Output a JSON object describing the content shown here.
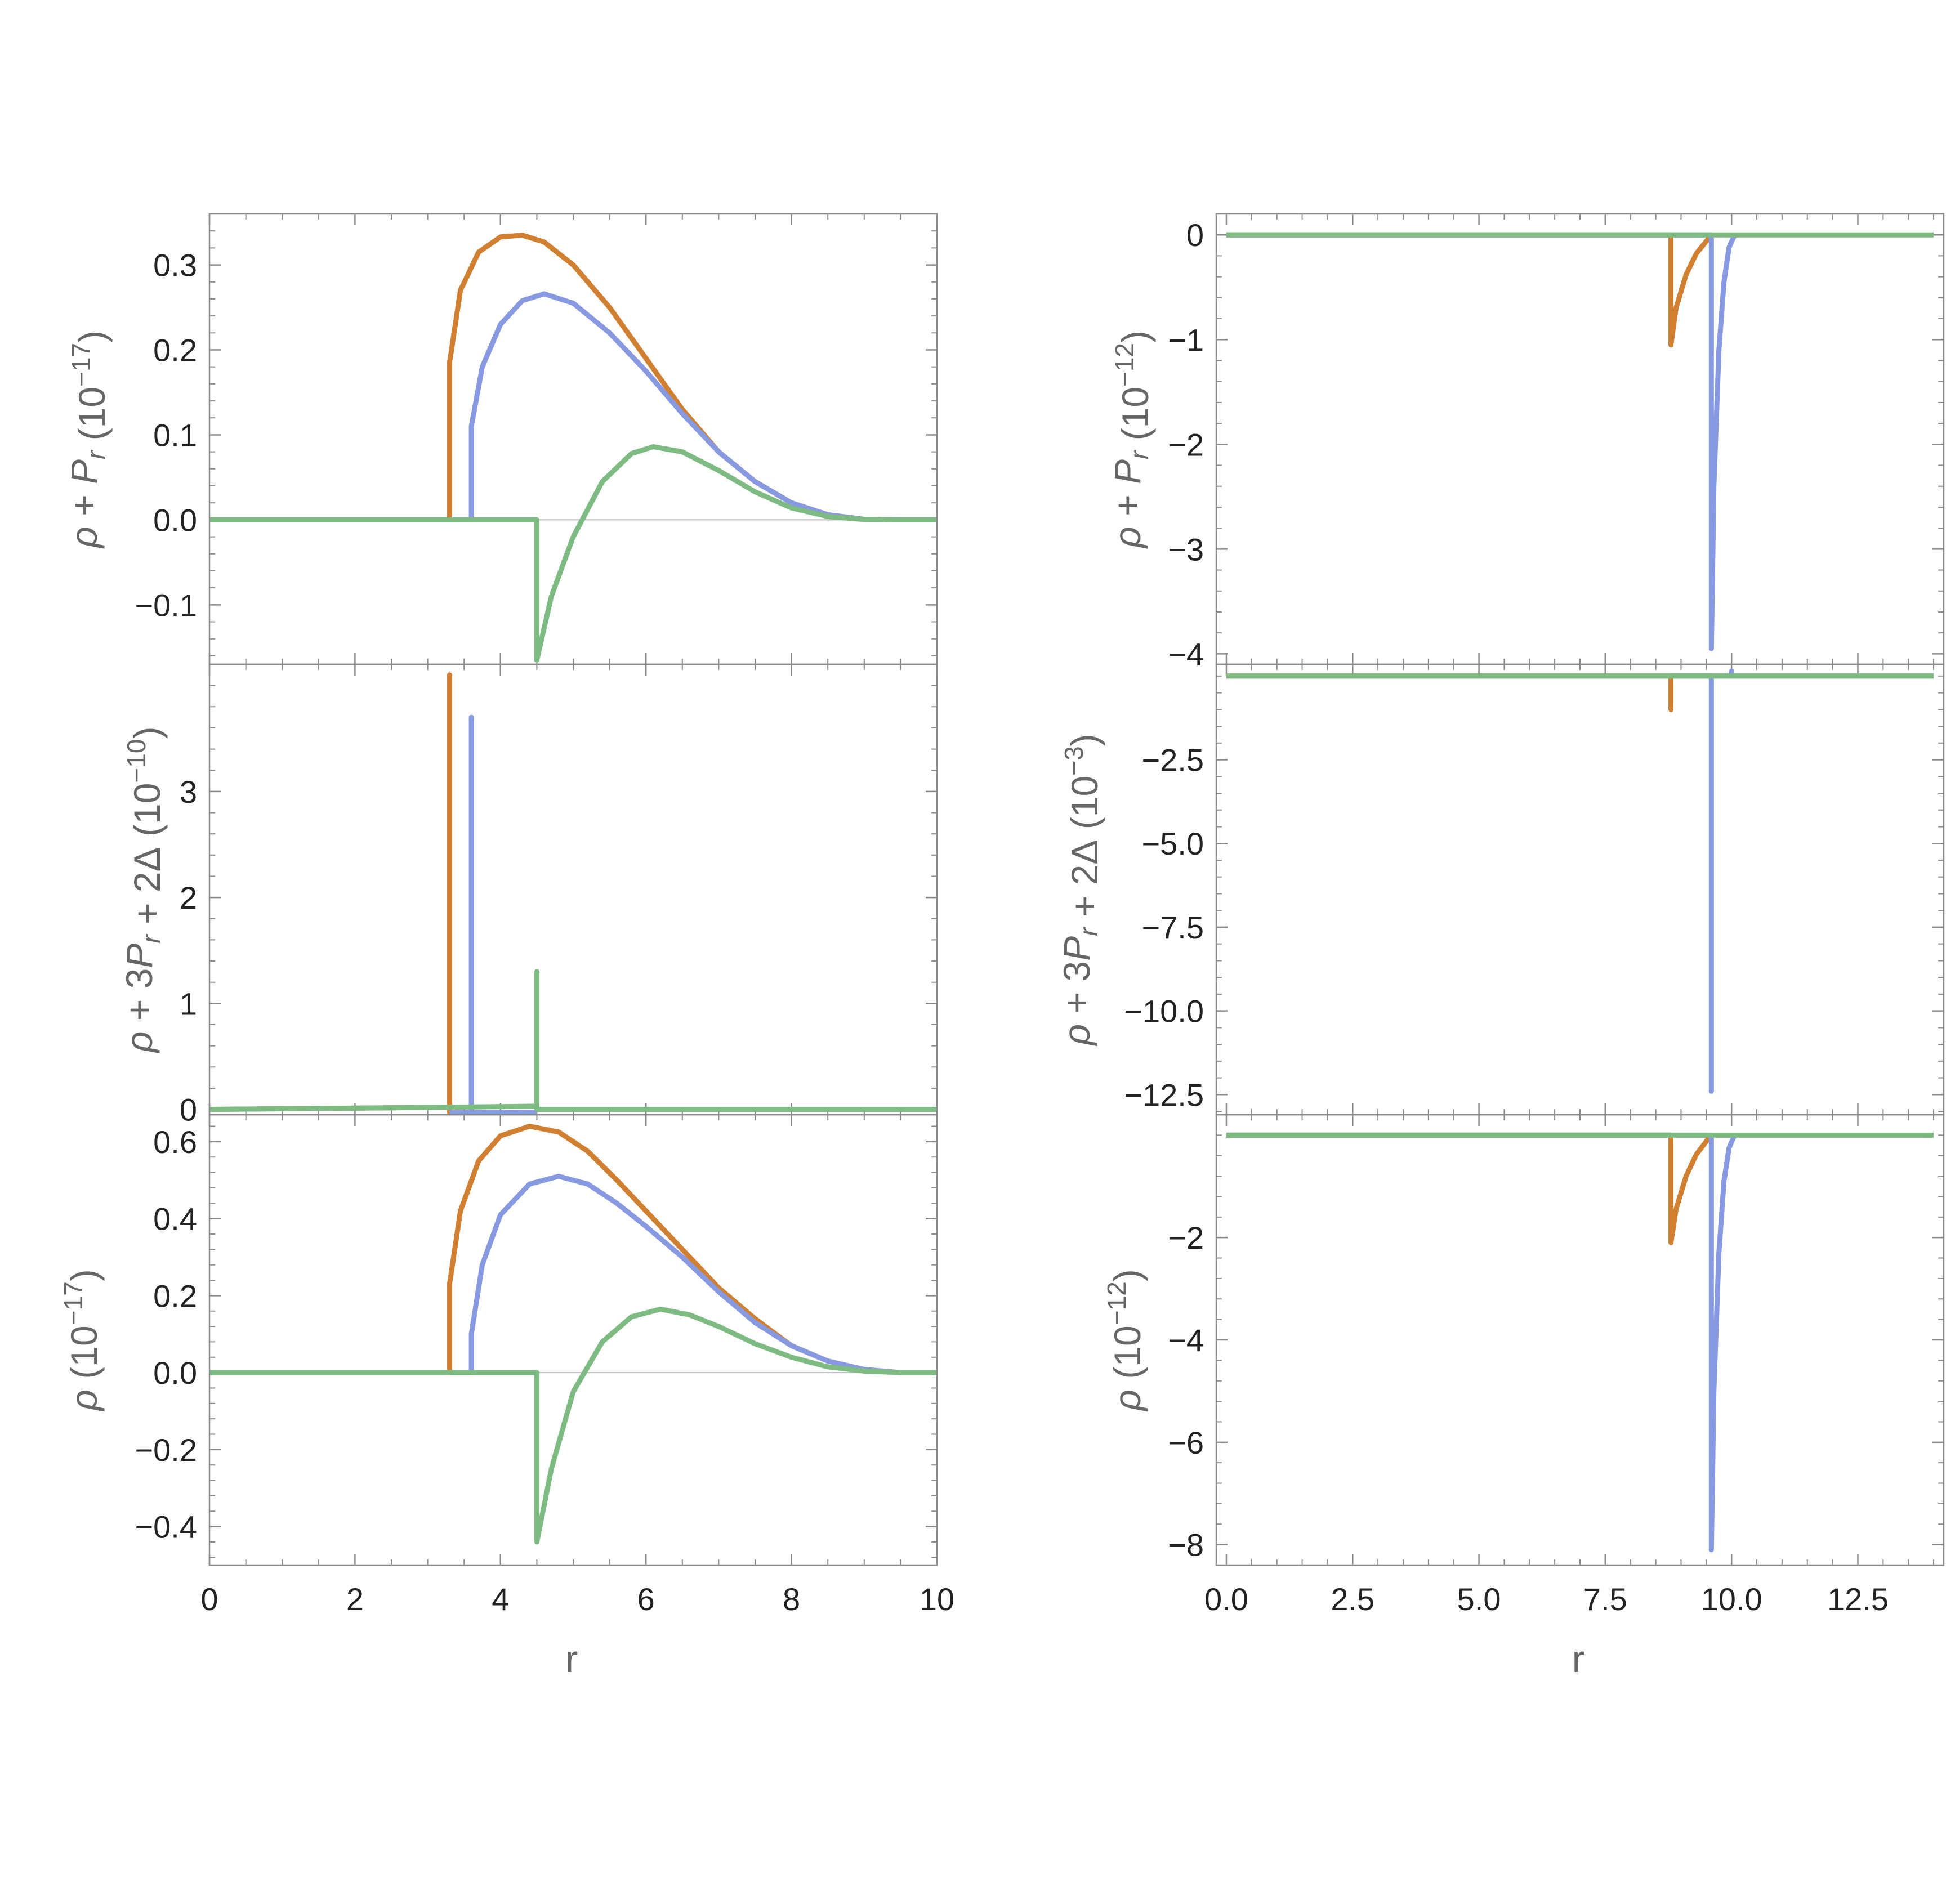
{
  "colors": {
    "orange": "#d17f30",
    "blue": "#8799e0",
    "green": "#7dbb82"
  },
  "left_xlabel": "r",
  "right_xlabel": "r",
  "chart_data": [
    {
      "type": "line",
      "id": "L1",
      "ylabel": "ρ + P_r (10^-17)",
      "xlim": [
        0,
        10
      ],
      "ylim": [
        -0.17,
        0.36
      ],
      "yticks": [
        "-0.1",
        "0.0",
        "0.1",
        "0.2",
        "0.3"
      ],
      "ytick_values": [
        -0.1,
        0.0,
        0.1,
        0.2,
        0.3
      ],
      "zero_line": true,
      "series": [
        {
          "color": "orange",
          "x": [
            0,
            3.3,
            3.3,
            3.45,
            3.7,
            4.0,
            4.3,
            4.6,
            5.0,
            5.5,
            6.0,
            6.5,
            7.0,
            7.5,
            8.0,
            8.5,
            9.0,
            9.5,
            10
          ],
          "y": [
            0,
            0,
            0.185,
            0.27,
            0.315,
            0.333,
            0.335,
            0.327,
            0.3,
            0.25,
            0.19,
            0.13,
            0.08,
            0.045,
            0.02,
            0.006,
            0.0005,
            0,
            0
          ]
        },
        {
          "color": "blue",
          "x": [
            0,
            3.6,
            3.6,
            3.75,
            4.0,
            4.3,
            4.6,
            5.0,
            5.5,
            6.0,
            6.5,
            7.0,
            7.5,
            8.0,
            8.5,
            9.0,
            9.5,
            10
          ],
          "y": [
            0,
            0,
            0.11,
            0.18,
            0.23,
            0.258,
            0.266,
            0.255,
            0.22,
            0.175,
            0.125,
            0.08,
            0.045,
            0.02,
            0.006,
            0.0005,
            0,
            0
          ]
        },
        {
          "color": "green",
          "x": [
            0,
            4.5,
            4.5,
            4.7,
            5.0,
            5.4,
            5.8,
            6.1,
            6.5,
            7.0,
            7.5,
            8.0,
            8.5,
            9.0,
            9.5,
            10
          ],
          "y": [
            0,
            0,
            -0.165,
            -0.09,
            -0.02,
            0.045,
            0.078,
            0.086,
            0.08,
            0.058,
            0.033,
            0.014,
            0.004,
            0.0004,
            0,
            0
          ]
        }
      ]
    },
    {
      "type": "line",
      "id": "L2",
      "ylabel": "ρ + 3P_r + 2Δ (10^-10)",
      "xlim": [
        0,
        10
      ],
      "ylim": [
        -0.05,
        4.2
      ],
      "yticks": [
        "0",
        "1",
        "2",
        "3"
      ],
      "ytick_values": [
        0,
        1,
        2,
        3
      ],
      "zero_line": false,
      "series": [
        {
          "color": "orange",
          "x": [
            0,
            3.3,
            3.3,
            3.3,
            3.6
          ],
          "y": [
            0,
            0.02,
            4.1,
            -0.03,
            -0.03
          ]
        },
        {
          "color": "blue",
          "x": [
            3.3,
            3.6,
            3.6,
            3.6,
            4.5
          ],
          "y": [
            -0.03,
            -0.03,
            3.7,
            -0.03,
            -0.03
          ]
        },
        {
          "color": "green",
          "x": [
            0,
            3.3,
            4.5,
            4.5,
            4.5,
            10
          ],
          "y": [
            0,
            0.02,
            0.03,
            1.3,
            0,
            0
          ]
        }
      ]
    },
    {
      "type": "line",
      "id": "L3",
      "ylabel": "ρ (10^-17)",
      "xlim": [
        0,
        10
      ],
      "ylim": [
        -0.5,
        0.67
      ],
      "yticks": [
        "-0.4",
        "-0.2",
        "0.0",
        "0.2",
        "0.4",
        "0.6"
      ],
      "ytick_values": [
        -0.4,
        -0.2,
        0.0,
        0.2,
        0.4,
        0.6
      ],
      "zero_line": true,
      "xticks": [
        "0",
        "2",
        "4",
        "6",
        "8",
        "10"
      ],
      "xtick_values": [
        0,
        2,
        4,
        6,
        8,
        10
      ],
      "series": [
        {
          "color": "orange",
          "x": [
            0,
            3.3,
            3.3,
            3.45,
            3.7,
            4.0,
            4.4,
            4.8,
            5.2,
            5.6,
            6.0,
            6.5,
            7.0,
            7.5,
            8.0,
            8.5,
            9.0,
            9.5,
            10
          ],
          "y": [
            0,
            0,
            0.23,
            0.42,
            0.55,
            0.615,
            0.64,
            0.625,
            0.575,
            0.5,
            0.42,
            0.32,
            0.22,
            0.14,
            0.07,
            0.03,
            0.008,
            0,
            0
          ]
        },
        {
          "color": "blue",
          "x": [
            0,
            3.6,
            3.6,
            3.75,
            4.0,
            4.4,
            4.8,
            5.2,
            5.6,
            6.0,
            6.5,
            7.0,
            7.5,
            8.0,
            8.5,
            9.0,
            9.5,
            10
          ],
          "y": [
            0,
            0,
            0.1,
            0.28,
            0.41,
            0.49,
            0.51,
            0.49,
            0.44,
            0.38,
            0.3,
            0.21,
            0.13,
            0.07,
            0.03,
            0.008,
            0,
            0
          ]
        },
        {
          "color": "green",
          "x": [
            0,
            4.5,
            4.5,
            4.7,
            5.0,
            5.4,
            5.8,
            6.2,
            6.6,
            7.0,
            7.5,
            8.0,
            8.5,
            9.0,
            9.5,
            10
          ],
          "y": [
            0,
            0,
            -0.44,
            -0.25,
            -0.05,
            0.08,
            0.145,
            0.165,
            0.15,
            0.12,
            0.075,
            0.04,
            0.015,
            0.004,
            0,
            0
          ]
        }
      ]
    },
    {
      "type": "line",
      "id": "R1",
      "ylabel": "ρ + P_r (10^-12)",
      "xlim": [
        -0.2,
        14.2
      ],
      "ylim": [
        -4.1,
        0.2
      ],
      "yticks": [
        "-4",
        "-3",
        "-2",
        "-1",
        "0"
      ],
      "ytick_values": [
        -4,
        -3,
        -2,
        -1,
        0
      ],
      "zero_line": false,
      "series": [
        {
          "color": "orange",
          "x": [
            0,
            8.8,
            8.8,
            8.9,
            9.1,
            9.3,
            9.5,
            9.6
          ],
          "y": [
            0,
            0,
            -1.05,
            -0.7,
            -0.38,
            -0.18,
            -0.06,
            0
          ]
        },
        {
          "color": "blue",
          "x": [
            0,
            9.6,
            9.6,
            9.65,
            9.75,
            9.85,
            9.95,
            10.05,
            10.1
          ],
          "y": [
            0,
            0,
            -3.95,
            -2.4,
            -1.1,
            -0.45,
            -0.12,
            -0.01,
            0
          ]
        },
        {
          "color": "green",
          "x": [
            0,
            14
          ],
          "y": [
            0,
            0
          ]
        }
      ]
    },
    {
      "type": "line",
      "id": "R2",
      "ylabel": "ρ + 3P_r + 2Δ (10^-3)",
      "xlim": [
        -0.2,
        14.2
      ],
      "ylim": [
        -13.1,
        0.35
      ],
      "yticks": [
        "-12.5",
        "-10.0",
        "-7.5",
        "-5.0",
        "-2.5"
      ],
      "ytick_values": [
        -12.5,
        -10.0,
        -7.5,
        -5.0,
        -2.5
      ],
      "zero_line": false,
      "series": [
        {
          "color": "orange",
          "x": [
            0,
            8.8,
            8.8,
            8.8,
            9.6
          ],
          "y": [
            0,
            0,
            -1.0,
            0,
            0
          ]
        },
        {
          "color": "blue",
          "x": [
            8.8,
            9.6,
            9.6,
            9.6,
            10.0,
            10.0,
            10.0,
            14
          ],
          "y": [
            0,
            0,
            -12.4,
            0,
            0,
            0.15,
            0,
            0
          ]
        },
        {
          "color": "green",
          "x": [
            0,
            14
          ],
          "y": [
            0,
            0
          ]
        }
      ]
    },
    {
      "type": "line",
      "id": "R3",
      "ylabel": "ρ (10^-12)",
      "xlim": [
        -0.2,
        14.2
      ],
      "ylim": [
        -8.4,
        0.4
      ],
      "yticks": [
        "-8",
        "-6",
        "-4",
        "-2"
      ],
      "ytick_values": [
        -8,
        -6,
        -4,
        -2
      ],
      "zero_line": false,
      "xticks": [
        "0.0",
        "2.5",
        "5.0",
        "7.5",
        "10.0",
        "12.5"
      ],
      "xtick_values": [
        0,
        2.5,
        5,
        7.5,
        10,
        12.5
      ],
      "series": [
        {
          "color": "orange",
          "x": [
            0,
            8.8,
            8.8,
            8.9,
            9.1,
            9.3,
            9.5,
            9.6
          ],
          "y": [
            0,
            0,
            -2.1,
            -1.45,
            -0.8,
            -0.38,
            -0.12,
            0
          ]
        },
        {
          "color": "blue",
          "x": [
            0,
            9.6,
            9.6,
            9.65,
            9.75,
            9.85,
            9.95,
            10.05,
            10.1
          ],
          "y": [
            0,
            0,
            -8.1,
            -5.0,
            -2.3,
            -0.9,
            -0.25,
            -0.02,
            0
          ]
        },
        {
          "color": "green",
          "x": [
            0,
            14
          ],
          "y": [
            0,
            0
          ]
        }
      ]
    }
  ]
}
